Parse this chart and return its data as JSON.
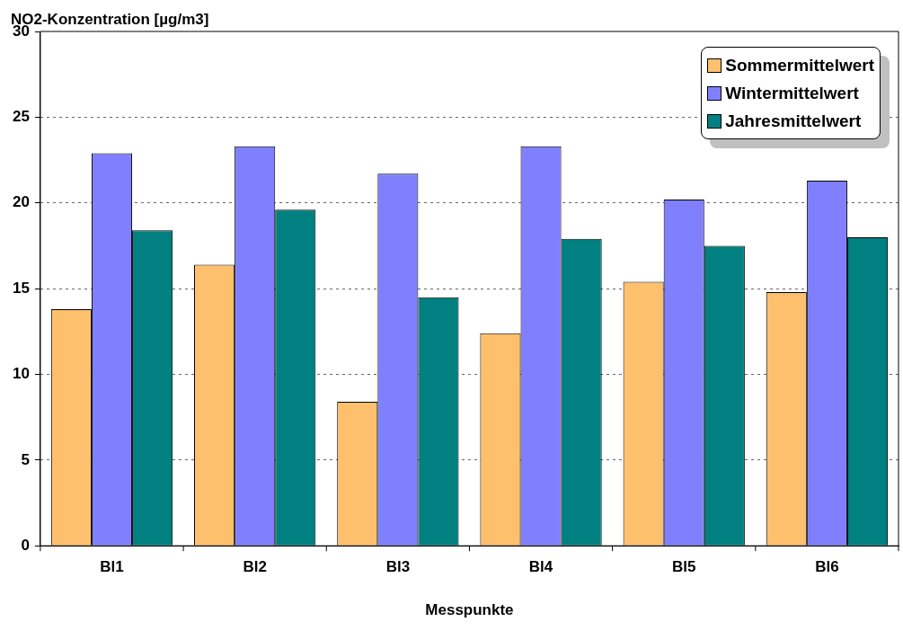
{
  "chart_data": {
    "type": "bar",
    "ylabel": "NO2-Konzentration [µg/m3]",
    "xlabel": "Messpunkte",
    "categories": [
      "Bl1",
      "Bl2",
      "Bl3",
      "Bl4",
      "Bl5",
      "Bl6"
    ],
    "series": [
      {
        "name": "Sommermittelwert",
        "color": "#ffc06e",
        "values": [
          13.8,
          16.4,
          8.4,
          12.4,
          15.4,
          14.8
        ]
      },
      {
        "name": "Wintermittelwert",
        "color": "#8080ff",
        "values": [
          22.9,
          23.3,
          21.7,
          23.3,
          20.2,
          21.3
        ]
      },
      {
        "name": "Jahresmittelwert",
        "color": "#008080",
        "values": [
          18.4,
          19.6,
          14.5,
          17.9,
          17.5,
          18.0
        ]
      }
    ],
    "ylim": [
      0,
      30
    ],
    "yticks": [
      0,
      5,
      10,
      15,
      20,
      25,
      30
    ],
    "grid": "y",
    "legend": "top right"
  }
}
